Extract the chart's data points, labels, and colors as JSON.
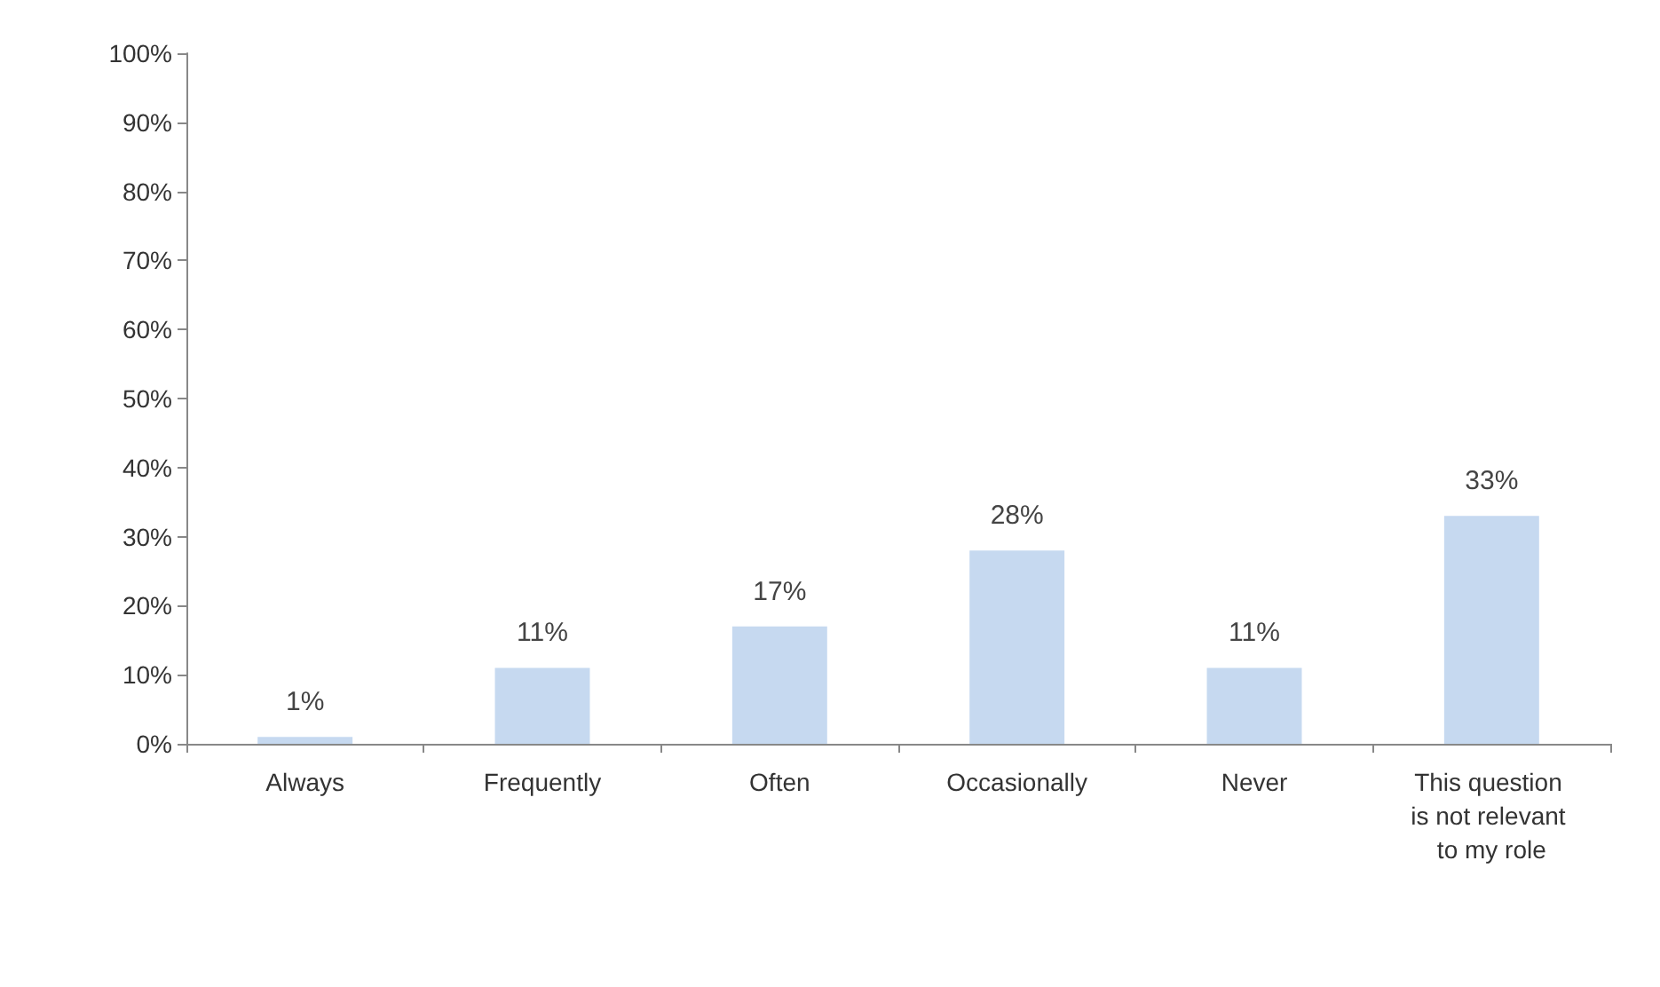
{
  "chart_data": {
    "type": "bar",
    "categories": [
      "Always",
      "Frequently",
      "Often",
      "Occasionally",
      "Never",
      "This question is not relevant to my role"
    ],
    "values": [
      1,
      11,
      17,
      28,
      11,
      33
    ],
    "color": "#c6d9f0",
    "value_labels": [
      "1%",
      "11%",
      "17%",
      "28%",
      "11%",
      "33%"
    ],
    "ylim": [
      0,
      100
    ],
    "yticks": [
      {
        "value": 0,
        "label": "0%"
      },
      {
        "value": 10,
        "label": "10%"
      },
      {
        "value": 20,
        "label": "20%"
      },
      {
        "value": 30,
        "label": "30%"
      },
      {
        "value": 40,
        "label": "40%"
      },
      {
        "value": 50,
        "label": "50%"
      },
      {
        "value": 60,
        "label": "60%"
      },
      {
        "value": 70,
        "label": "70%"
      },
      {
        "value": 80,
        "label": "80%"
      },
      {
        "value": 90,
        "label": "90%"
      },
      {
        "value": 100,
        "label": "100%"
      }
    ],
    "grid": false
  }
}
